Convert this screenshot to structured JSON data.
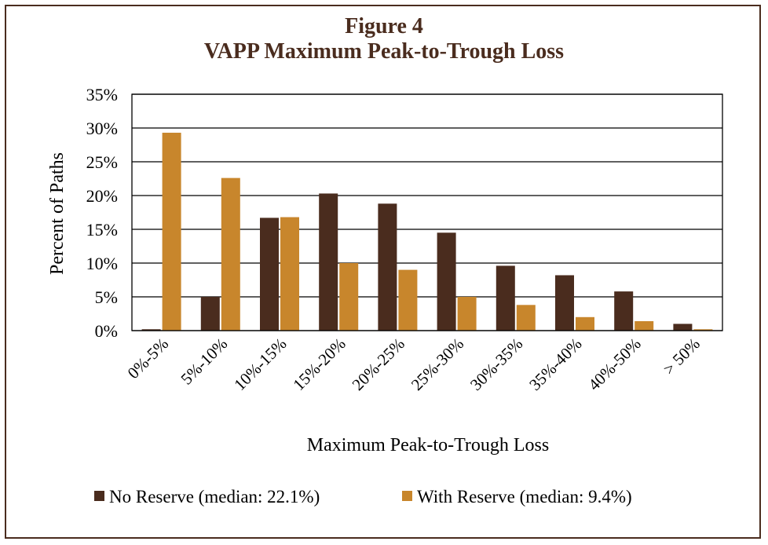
{
  "chart_data": {
    "type": "bar",
    "title_line1": "Figure 4",
    "title_line2": "VAPP Maximum Peak-to-Trough Loss",
    "xlabel": "Maximum Peak-to-Trough Loss",
    "ylabel": "Percent of Paths",
    "ylim": [
      0,
      35
    ],
    "y_ticks": [
      "0%",
      "5%",
      "10%",
      "15%",
      "20%",
      "25%",
      "30%",
      "35%"
    ],
    "grid": true,
    "legend_position": "bottom",
    "categories": [
      "0%-5%",
      "5%-10%",
      "10%-15%",
      "15%-20%",
      "20%-25%",
      "25%-30%",
      "30%-35%",
      "35%-40%",
      "40%-50%",
      "> 50%"
    ],
    "series": [
      {
        "name": "No Reserve (median: 22.1%)",
        "color": "#4a2c1e",
        "values": [
          0.2,
          5.0,
          16.7,
          20.3,
          18.8,
          14.5,
          9.6,
          8.2,
          5.8,
          1.0
        ]
      },
      {
        "name": "With Reserve (median: 9.4%)",
        "color": "#c8862c",
        "values": [
          29.3,
          22.6,
          16.8,
          10.0,
          9.0,
          5.0,
          3.8,
          2.0,
          1.4,
          0.2
        ]
      }
    ]
  }
}
